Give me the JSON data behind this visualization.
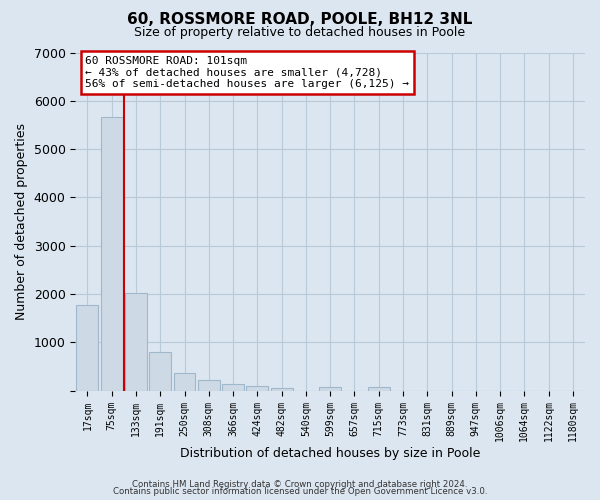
{
  "title": "60, ROSSMORE ROAD, POOLE, BH12 3NL",
  "subtitle": "Size of property relative to detached houses in Poole",
  "xlabel": "Distribution of detached houses by size in Poole",
  "ylabel": "Number of detached properties",
  "bar_labels": [
    "17sqm",
    "75sqm",
    "133sqm",
    "191sqm",
    "250sqm",
    "308sqm",
    "366sqm",
    "424sqm",
    "482sqm",
    "540sqm",
    "599sqm",
    "657sqm",
    "715sqm",
    "773sqm",
    "831sqm",
    "889sqm",
    "947sqm",
    "1006sqm",
    "1064sqm",
    "1122sqm",
    "1180sqm"
  ],
  "bar_values": [
    1780,
    5660,
    2020,
    800,
    370,
    210,
    140,
    90,
    60,
    0,
    70,
    0,
    70,
    0,
    0,
    0,
    0,
    0,
    0,
    0,
    0
  ],
  "bar_color": "#cdd9e5",
  "bar_edge_color": "#9fb8cc",
  "ylim": [
    0,
    7000
  ],
  "yticks": [
    0,
    1000,
    2000,
    3000,
    4000,
    5000,
    6000,
    7000
  ],
  "vline_color": "#cc0000",
  "annotation_title": "60 ROSSMORE ROAD: 101sqm",
  "annotation_line1": "← 43% of detached houses are smaller (4,728)",
  "annotation_line2": "56% of semi-detached houses are larger (6,125) →",
  "annotation_box_color": "#ffffff",
  "annotation_box_edge": "#cc0000",
  "footer1": "Contains HM Land Registry data © Crown copyright and database right 2024.",
  "footer2": "Contains public sector information licensed under the Open Government Licence v3.0.",
  "bg_color": "#dce6f0",
  "plot_bg_color": "#dce6f0",
  "grid_color": "#b8cad8"
}
